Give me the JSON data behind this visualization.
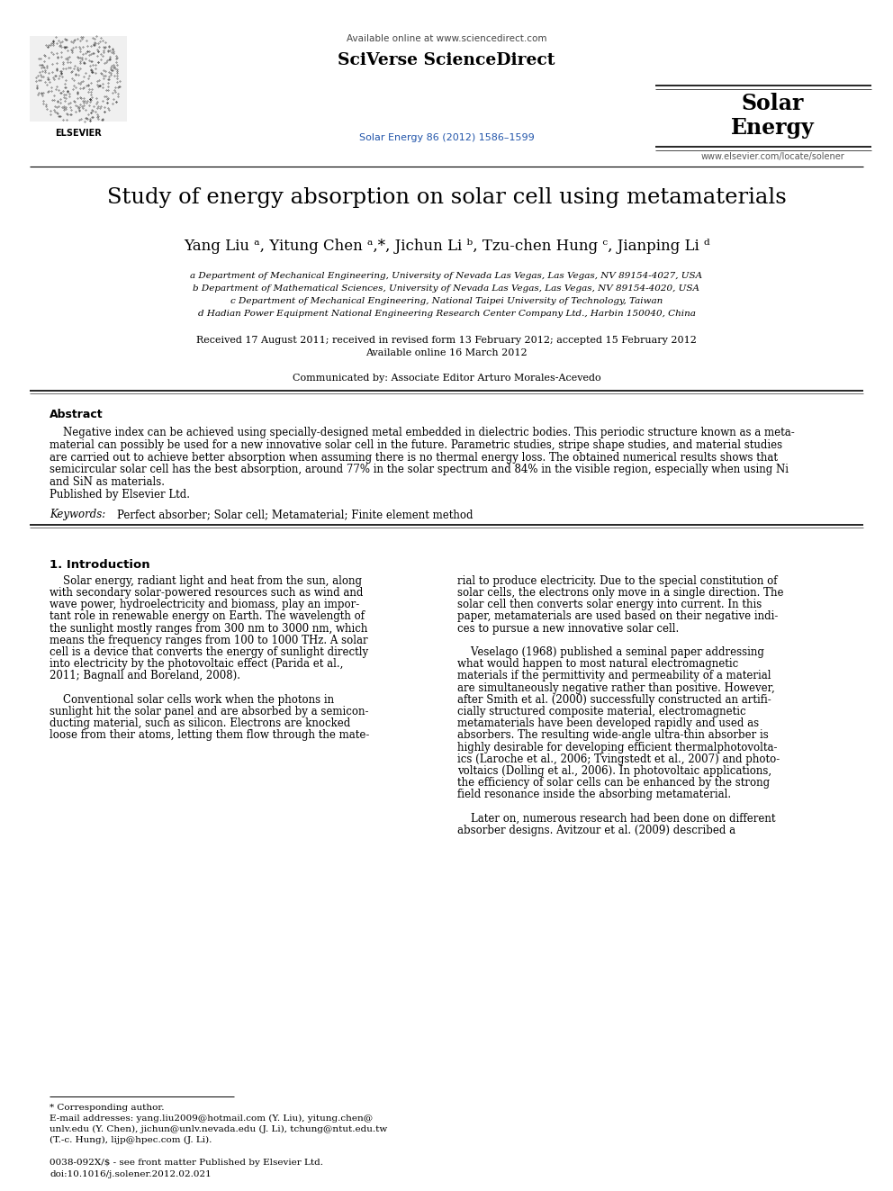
{
  "bg_color": "#ffffff",
  "title": "Study of energy absorption on solar cell using metamaterials",
  "authors_text": "Yang Liu ",
  "header_available": "Available online at www.sciencedirect.com",
  "header_sciverse": "SciVerse ScienceDirect",
  "header_journal": "Solar Energy 86 (2012) 1586–1599",
  "header_solar_line1": "Solar",
  "header_solar_line2": "Energy",
  "header_website": "www.elsevier.com/locate/solener",
  "affil_a": "a Department of Mechanical Engineering, University of Nevada Las Vegas, Las Vegas, NV 89154-4027, USA",
  "affil_b": "b Department of Mathematical Sciences, University of Nevada Las Vegas, Las Vegas, NV 89154-4020, USA",
  "affil_c": "c Department of Mechanical Engineering, National Taipei University of Technology, Taiwan",
  "affil_d": "d Hadian Power Equipment National Engineering Research Center Company Ltd., Harbin 150040, China",
  "received": "Received 17 August 2011; received in revised form 13 February 2012; accepted 15 February 2012",
  "available_online": "Available online 16 March 2012",
  "communicated": "Communicated by: Associate Editor Arturo Morales-Acevedo",
  "abstract_title": "Abstract",
  "abstract_lines": [
    "    Negative index can be achieved using specially-designed metal embedded in dielectric bodies. This periodic structure known as a meta-",
    "material can possibly be used for a new innovative solar cell in the future. Parametric studies, stripe shape studies, and material studies",
    "are carried out to achieve better absorption when assuming there is no thermal energy loss. The obtained numerical results shows that",
    "semicircular solar cell has the best absorption, around 77% in the solar spectrum and 84% in the visible region, especially when using Ni",
    "and SiN as materials.",
    "Published by Elsevier Ltd."
  ],
  "keywords_label": "Keywords:",
  "keywords_text": "  Perfect absorber; Solar cell; Metamaterial; Finite element method",
  "section1_title": "1. Introduction",
  "intro_left_lines": [
    "    Solar energy, radiant light and heat from the sun, along",
    "with secondary solar-powered resources such as wind and",
    "wave power, hydroelectricity and biomass, play an impor-",
    "tant role in renewable energy on Earth. The wavelength of",
    "the sunlight mostly ranges from 300 nm to 3000 nm, which",
    "means the frequency ranges from 100 to 1000 THz. A solar",
    "cell is a device that converts the energy of sunlight directly",
    "into electricity by the photovoltaic effect (Parida et al.,",
    "2011; Bagnall and Boreland, 2008).",
    "",
    "    Conventional solar cells work when the photons in",
    "sunlight hit the solar panel and are absorbed by a semicon-",
    "ducting material, such as silicon. Electrons are knocked",
    "loose from their atoms, letting them flow through the mate-"
  ],
  "intro_right_lines": [
    "rial to produce electricity. Due to the special constitution of",
    "solar cells, the electrons only move in a single direction. The",
    "solar cell then converts solar energy into current. In this",
    "paper, metamaterials are used based on their negative indi-",
    "ces to pursue a new innovative solar cell.",
    "",
    "    Veselago (1968) published a seminal paper addressing",
    "what would happen to most natural electromagnetic",
    "materials if the permittivity and permeability of a material",
    "are simultaneously negative rather than positive. However,",
    "after Smith et al. (2000) successfully constructed an artifi-",
    "cially structured composite material, electromagnetic",
    "metamaterials have been developed rapidly and used as",
    "absorbers. The resulting wide-angle ultra-thin absorber is",
    "highly desirable for developing efficient thermalphotovolta-",
    "ics (Laroche et al., 2006; Tvingstedt et al., 2007) and photo-",
    "voltaics (Dolling et al., 2006). In photovoltaic applications,",
    "the efficiency of solar cells can be enhanced by the strong",
    "field resonance inside the absorbing metamaterial.",
    "",
    "    Later on, numerous research had been done on different",
    "absorber designs. Avitzour et al. (2009) described a"
  ],
  "footnote_line": "* Corresponding author.",
  "footnote_email": "E-mail addresses: yang.liu2009@hotmail.com (Y. Liu), yitung.chen@",
  "footnote_email2": "unlv.edu (Y. Chen), jichun@unlv.nevada.edu (J. Li), tchung@ntut.edu.tw",
  "footnote_email3": "(T.-c. Hung), lijp@hpec.com (J. Li).",
  "footnote_issn": "0038-092X/$ - see front matter Published by Elsevier Ltd.",
  "footnote_doi": "doi:10.1016/j.solener.2012.02.021",
  "blue_color": "#2255aa",
  "dark_blue": "#1a4a8a"
}
